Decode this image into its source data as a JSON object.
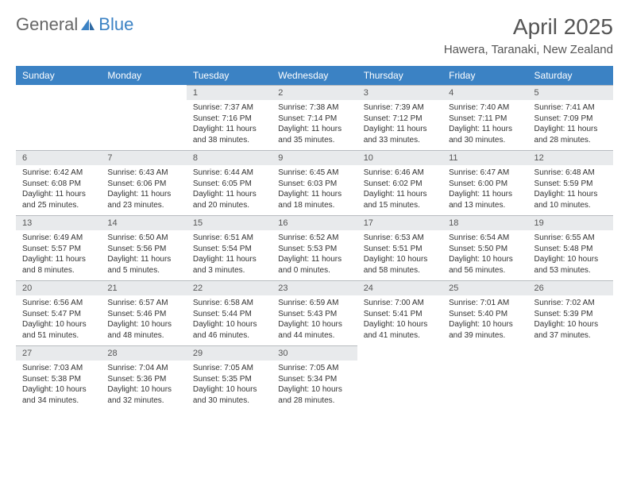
{
  "brand": {
    "part1": "General",
    "part2": "Blue"
  },
  "title": "April 2025",
  "location": "Hawera, Taranaki, New Zealand",
  "colors": {
    "header_bg": "#3b82c4",
    "header_text": "#ffffff",
    "daynum_bg": "#e8eaec",
    "daynum_border": "#b8bcc0",
    "text": "#333333",
    "title_text": "#555555"
  },
  "weekdays": [
    "Sunday",
    "Monday",
    "Tuesday",
    "Wednesday",
    "Thursday",
    "Friday",
    "Saturday"
  ],
  "layout": {
    "rows": 5,
    "cols": 7,
    "first_weekday_index": 2,
    "days_in_month": 30
  },
  "days": {
    "1": {
      "sunrise": "7:37 AM",
      "sunset": "7:16 PM",
      "daylight": "11 hours and 38 minutes."
    },
    "2": {
      "sunrise": "7:38 AM",
      "sunset": "7:14 PM",
      "daylight": "11 hours and 35 minutes."
    },
    "3": {
      "sunrise": "7:39 AM",
      "sunset": "7:12 PM",
      "daylight": "11 hours and 33 minutes."
    },
    "4": {
      "sunrise": "7:40 AM",
      "sunset": "7:11 PM",
      "daylight": "11 hours and 30 minutes."
    },
    "5": {
      "sunrise": "7:41 AM",
      "sunset": "7:09 PM",
      "daylight": "11 hours and 28 minutes."
    },
    "6": {
      "sunrise": "6:42 AM",
      "sunset": "6:08 PM",
      "daylight": "11 hours and 25 minutes."
    },
    "7": {
      "sunrise": "6:43 AM",
      "sunset": "6:06 PM",
      "daylight": "11 hours and 23 minutes."
    },
    "8": {
      "sunrise": "6:44 AM",
      "sunset": "6:05 PM",
      "daylight": "11 hours and 20 minutes."
    },
    "9": {
      "sunrise": "6:45 AM",
      "sunset": "6:03 PM",
      "daylight": "11 hours and 18 minutes."
    },
    "10": {
      "sunrise": "6:46 AM",
      "sunset": "6:02 PM",
      "daylight": "11 hours and 15 minutes."
    },
    "11": {
      "sunrise": "6:47 AM",
      "sunset": "6:00 PM",
      "daylight": "11 hours and 13 minutes."
    },
    "12": {
      "sunrise": "6:48 AM",
      "sunset": "5:59 PM",
      "daylight": "11 hours and 10 minutes."
    },
    "13": {
      "sunrise": "6:49 AM",
      "sunset": "5:57 PM",
      "daylight": "11 hours and 8 minutes."
    },
    "14": {
      "sunrise": "6:50 AM",
      "sunset": "5:56 PM",
      "daylight": "11 hours and 5 minutes."
    },
    "15": {
      "sunrise": "6:51 AM",
      "sunset": "5:54 PM",
      "daylight": "11 hours and 3 minutes."
    },
    "16": {
      "sunrise": "6:52 AM",
      "sunset": "5:53 PM",
      "daylight": "11 hours and 0 minutes."
    },
    "17": {
      "sunrise": "6:53 AM",
      "sunset": "5:51 PM",
      "daylight": "10 hours and 58 minutes."
    },
    "18": {
      "sunrise": "6:54 AM",
      "sunset": "5:50 PM",
      "daylight": "10 hours and 56 minutes."
    },
    "19": {
      "sunrise": "6:55 AM",
      "sunset": "5:48 PM",
      "daylight": "10 hours and 53 minutes."
    },
    "20": {
      "sunrise": "6:56 AM",
      "sunset": "5:47 PM",
      "daylight": "10 hours and 51 minutes."
    },
    "21": {
      "sunrise": "6:57 AM",
      "sunset": "5:46 PM",
      "daylight": "10 hours and 48 minutes."
    },
    "22": {
      "sunrise": "6:58 AM",
      "sunset": "5:44 PM",
      "daylight": "10 hours and 46 minutes."
    },
    "23": {
      "sunrise": "6:59 AM",
      "sunset": "5:43 PM",
      "daylight": "10 hours and 44 minutes."
    },
    "24": {
      "sunrise": "7:00 AM",
      "sunset": "5:41 PM",
      "daylight": "10 hours and 41 minutes."
    },
    "25": {
      "sunrise": "7:01 AM",
      "sunset": "5:40 PM",
      "daylight": "10 hours and 39 minutes."
    },
    "26": {
      "sunrise": "7:02 AM",
      "sunset": "5:39 PM",
      "daylight": "10 hours and 37 minutes."
    },
    "27": {
      "sunrise": "7:03 AM",
      "sunset": "5:38 PM",
      "daylight": "10 hours and 34 minutes."
    },
    "28": {
      "sunrise": "7:04 AM",
      "sunset": "5:36 PM",
      "daylight": "10 hours and 32 minutes."
    },
    "29": {
      "sunrise": "7:05 AM",
      "sunset": "5:35 PM",
      "daylight": "10 hours and 30 minutes."
    },
    "30": {
      "sunrise": "7:05 AM",
      "sunset": "5:34 PM",
      "daylight": "10 hours and 28 minutes."
    }
  },
  "labels": {
    "sunrise": "Sunrise:",
    "sunset": "Sunset:",
    "daylight": "Daylight:"
  }
}
